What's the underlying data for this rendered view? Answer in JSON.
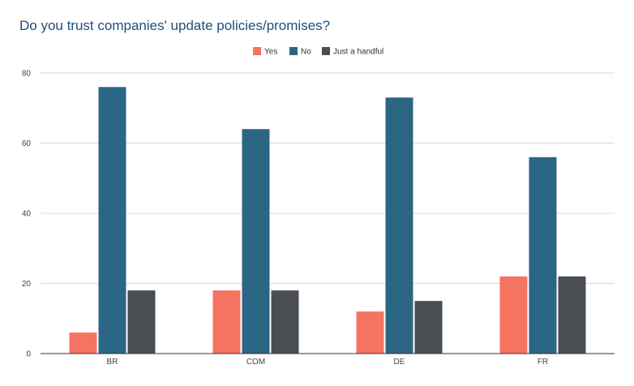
{
  "chart_data": {
    "type": "bar",
    "title": "Do you trust companies' update policies/promises?",
    "categories": [
      "BR",
      "COM",
      "DE",
      "FR"
    ],
    "series": [
      {
        "name": "Yes",
        "color": "#f47461",
        "values": [
          6,
          18,
          12,
          22
        ]
      },
      {
        "name": "No",
        "color": "#2c6685",
        "values": [
          76,
          64,
          73,
          56
        ]
      },
      {
        "name": "Just a handful",
        "color": "#4a4d52",
        "values": [
          18,
          18,
          15,
          22
        ]
      }
    ],
    "ylim": [
      0,
      80
    ],
    "yticks": [
      0,
      20,
      40,
      60,
      80
    ],
    "grid": true,
    "legend_position": "top-center"
  }
}
